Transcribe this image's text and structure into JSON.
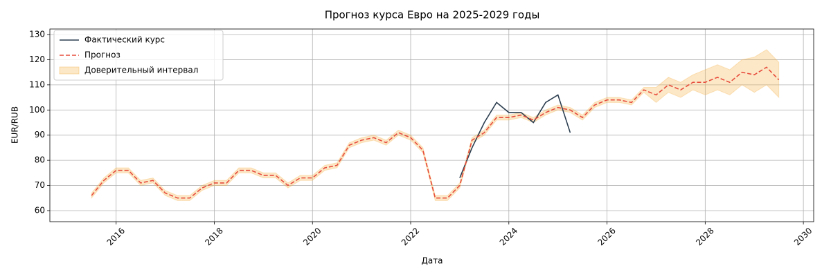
{
  "chart_data": {
    "type": "line",
    "title": "Прогноз курса Евро на 2025-2029 годы",
    "x_label": "Дата",
    "y_label": "EUR/RUB",
    "x": [
      2015.5,
      2015.75,
      2016,
      2016.25,
      2016.5,
      2016.75,
      2017,
      2017.25,
      2017.5,
      2017.75,
      2018,
      2018.25,
      2018.5,
      2018.75,
      2019,
      2019.25,
      2019.5,
      2019.75,
      2020,
      2020.25,
      2020.5,
      2020.75,
      2021,
      2021.25,
      2021.5,
      2021.75,
      2022,
      2022.25,
      2022.5,
      2022.75,
      2023,
      2023.25,
      2023.5,
      2023.75,
      2024,
      2024.25,
      2024.5,
      2024.75,
      2025,
      2025.25,
      2025.5,
      2025.75,
      2026,
      2026.25,
      2026.5,
      2026.75,
      2027,
      2027.25,
      2027.5,
      2027.75,
      2028,
      2028.25,
      2028.5,
      2028.75,
      2029,
      2029.25,
      2029.5
    ],
    "series": [
      {
        "name": "Фактический курс",
        "color": "#2c3e50",
        "dashed": false,
        "values": [
          null,
          null,
          null,
          null,
          null,
          null,
          null,
          null,
          null,
          null,
          null,
          null,
          null,
          null,
          null,
          null,
          null,
          null,
          null,
          null,
          null,
          null,
          null,
          null,
          null,
          null,
          null,
          null,
          null,
          null,
          73,
          85,
          95,
          103,
          99,
          99,
          95,
          103,
          106,
          91,
          null,
          null,
          null,
          null,
          null,
          null,
          null,
          null,
          null,
          null,
          null,
          null,
          null,
          null,
          null,
          null,
          null
        ]
      },
      {
        "name": "Прогноз",
        "color": "#e74c3c",
        "dashed": true,
        "values": [
          66,
          72,
          76,
          76,
          71,
          72,
          67,
          65,
          65,
          69,
          71,
          71,
          76,
          76,
          74,
          74,
          70,
          73,
          73,
          77,
          78,
          86,
          88,
          89,
          87,
          91,
          89,
          84,
          65,
          65,
          70,
          88,
          91,
          97,
          97,
          98,
          96,
          99,
          101,
          100,
          97,
          102,
          104,
          104,
          103,
          108,
          106,
          110,
          108,
          111,
          111,
          113,
          111,
          115,
          114,
          117,
          112
        ]
      }
    ],
    "band": {
      "name": "Доверительный интервал",
      "color": "#f5b041",
      "lower": [
        65,
        71,
        75,
        75,
        70,
        71,
        66,
        64,
        64,
        68,
        70,
        70,
        75,
        75,
        73,
        73,
        69,
        72,
        72,
        76,
        77,
        85,
        87,
        88,
        86,
        90,
        88,
        83,
        64,
        64,
        69,
        87,
        90,
        96,
        96,
        97,
        95,
        98,
        100,
        99,
        96,
        101,
        103,
        103,
        102,
        107,
        103,
        107,
        105,
        108,
        106,
        108,
        106,
        110,
        107,
        110,
        105
      ],
      "upper": [
        67,
        73,
        77,
        77,
        72,
        73,
        68,
        66,
        66,
        70,
        72,
        72,
        77,
        77,
        75,
        75,
        71,
        74,
        74,
        78,
        79,
        87,
        89,
        90,
        88,
        92,
        90,
        85,
        66,
        66,
        71,
        89,
        92,
        98,
        98,
        99,
        97,
        100,
        102,
        101,
        98,
        103,
        105,
        105,
        104,
        109,
        109,
        113,
        111,
        114,
        116,
        118,
        116,
        120,
        121,
        124,
        119
      ]
    },
    "xlim": [
      2014.65,
      2030.21
    ],
    "ylim": [
      55.6,
      132.2
    ],
    "xticks": [
      2016,
      2018,
      2020,
      2022,
      2024,
      2026,
      2028,
      2030
    ],
    "yticks": [
      60,
      70,
      80,
      90,
      100,
      110,
      120,
      130
    ],
    "grid": true,
    "legend": "upper-left"
  }
}
